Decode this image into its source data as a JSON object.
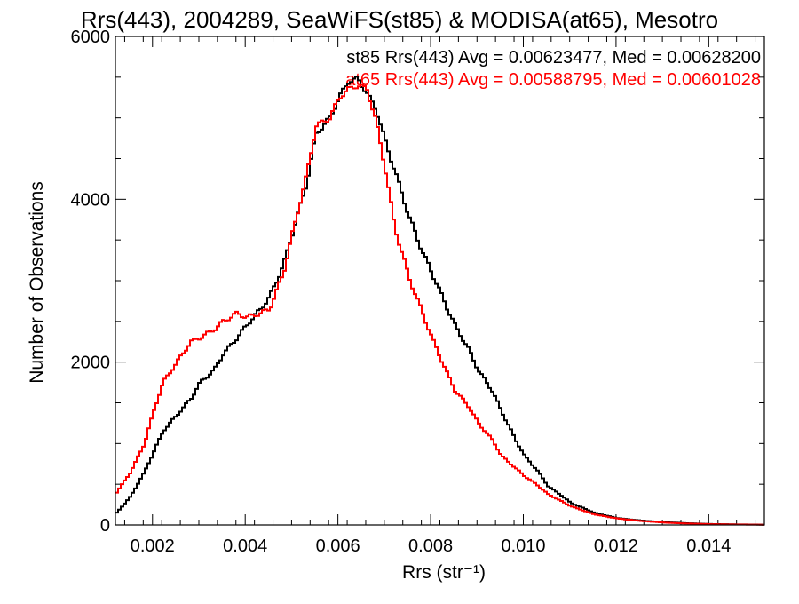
{
  "chart_data": {
    "type": "line",
    "title": "Rrs(443), 2004289, SeaWiFS(st85) & MODISA(at65), Mesotro",
    "xlabel": "Rrs (str⁻¹)",
    "ylabel": "Number of Observations",
    "xlim": [
      0.0012,
      0.0152
    ],
    "ylim": [
      0,
      6000
    ],
    "x_ticks": [
      0.002,
      0.004,
      0.006,
      0.008,
      0.01,
      0.012,
      0.014
    ],
    "x_tick_labels": [
      "0.002",
      "0.004",
      "0.006",
      "0.008",
      "0.010",
      "0.012",
      "0.014"
    ],
    "y_ticks": [
      0,
      2000,
      4000,
      6000
    ],
    "y_tick_labels": [
      "0",
      "2000",
      "4000",
      "6000"
    ],
    "grid": false,
    "step_style": "histogram",
    "series": [
      {
        "name": "st85",
        "color": "#000000",
        "stats_text": "st85 Rrs(443) Avg = 0.00623477, Med = 0.00628200",
        "x": [
          0.0012,
          0.0015,
          0.0018,
          0.002,
          0.0022,
          0.0025,
          0.0028,
          0.003,
          0.0033,
          0.0035,
          0.0038,
          0.004,
          0.0043,
          0.0045,
          0.0048,
          0.005,
          0.0053,
          0.0055,
          0.0058,
          0.006,
          0.0062,
          0.0064,
          0.0066,
          0.0068,
          0.007,
          0.0072,
          0.0075,
          0.0078,
          0.008,
          0.0083,
          0.0085,
          0.0088,
          0.009,
          0.0093,
          0.0095,
          0.0098,
          0.01,
          0.0103,
          0.0105,
          0.0108,
          0.011,
          0.0113,
          0.0115,
          0.0118,
          0.012,
          0.0125,
          0.013,
          0.0135,
          0.014,
          0.0145,
          0.015,
          0.0152
        ],
        "values": [
          150,
          350,
          650,
          900,
          1150,
          1350,
          1550,
          1750,
          1900,
          2100,
          2300,
          2450,
          2650,
          2800,
          3200,
          3600,
          4200,
          4800,
          5000,
          5250,
          5450,
          5480,
          5300,
          5100,
          4700,
          4350,
          3800,
          3350,
          3100,
          2700,
          2450,
          2150,
          1900,
          1650,
          1400,
          1050,
          850,
          650,
          480,
          360,
          270,
          200,
          150,
          110,
          85,
          55,
          35,
          22,
          12,
          8,
          5,
          3
        ]
      },
      {
        "name": "at65",
        "color": "#ff0000",
        "stats_text": "at65 Rrs(443) Avg = 0.00588795, Med = 0.00601028",
        "x": [
          0.0012,
          0.0015,
          0.0018,
          0.002,
          0.0022,
          0.0025,
          0.0028,
          0.003,
          0.0033,
          0.0035,
          0.0038,
          0.004,
          0.0043,
          0.0045,
          0.0048,
          0.005,
          0.0053,
          0.0055,
          0.0058,
          0.006,
          0.0062,
          0.0064,
          0.0066,
          0.0068,
          0.007,
          0.0072,
          0.0075,
          0.0078,
          0.008,
          0.0083,
          0.0085,
          0.0088,
          0.009,
          0.0093,
          0.0095,
          0.0098,
          0.01,
          0.0103,
          0.0105,
          0.0108,
          0.011,
          0.0113,
          0.0115,
          0.0118,
          0.012,
          0.0125,
          0.013,
          0.0135,
          0.014,
          0.0145,
          0.015,
          0.0152
        ],
        "values": [
          400,
          650,
          1000,
          1400,
          1750,
          2000,
          2250,
          2300,
          2400,
          2500,
          2600,
          2550,
          2600,
          2650,
          3100,
          3600,
          4300,
          4900,
          5000,
          5250,
          5350,
          5400,
          5350,
          4950,
          4350,
          3650,
          3050,
          2600,
          2300,
          1900,
          1650,
          1450,
          1250,
          1050,
          850,
          700,
          600,
          480,
          380,
          290,
          230,
          170,
          130,
          100,
          80,
          50,
          30,
          18,
          10,
          6,
          4,
          2
        ]
      }
    ]
  }
}
